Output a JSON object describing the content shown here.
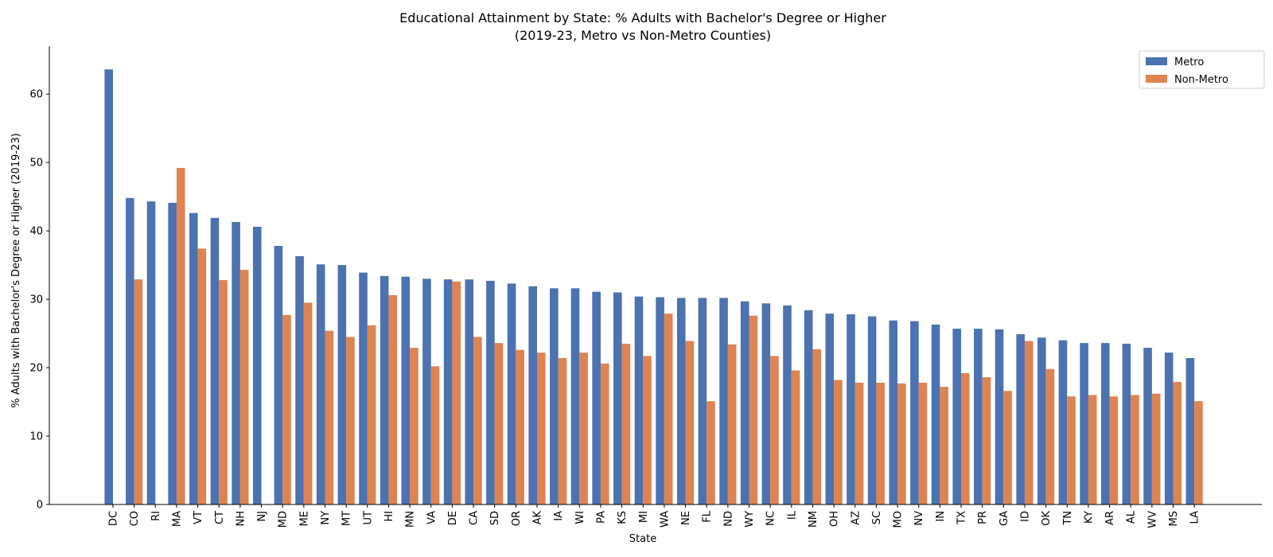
{
  "chart_data": {
    "type": "bar",
    "title": "Educational Attainment by State: % Adults with Bachelor's Degree or Higher",
    "subtitle": "(2019-23, Metro vs Non-Metro Counties)",
    "xlabel": "State",
    "ylabel": "% Adults with Bachelor's Degree or Higher (2019-23)",
    "ylim": [
      0,
      67
    ],
    "yticks": [
      0,
      10,
      20,
      30,
      40,
      50,
      60
    ],
    "grid": false,
    "legend_position": "top-right",
    "categories": [
      "DC",
      "CO",
      "RI",
      "MA",
      "VT",
      "CT",
      "NH",
      "NJ",
      "MD",
      "ME",
      "NY",
      "MT",
      "UT",
      "HI",
      "MN",
      "VA",
      "DE",
      "CA",
      "SD",
      "OR",
      "AK",
      "IA",
      "WI",
      "PA",
      "KS",
      "MI",
      "WA",
      "NE",
      "FL",
      "ND",
      "WY",
      "NC",
      "IL",
      "NM",
      "OH",
      "AZ",
      "SC",
      "MO",
      "NV",
      "IN",
      "TX",
      "PR",
      "GA",
      "ID",
      "OK",
      "TN",
      "KY",
      "AR",
      "AL",
      "WV",
      "MS",
      "LA"
    ],
    "series": [
      {
        "name": "Metro",
        "color": "#4c72b0",
        "values": [
          63.6,
          44.8,
          44.3,
          44.1,
          42.6,
          41.9,
          41.3,
          40.6,
          37.8,
          36.3,
          35.1,
          35.0,
          33.9,
          33.4,
          33.3,
          33.0,
          32.9,
          32.9,
          32.7,
          32.3,
          31.9,
          31.6,
          31.6,
          31.1,
          31.0,
          30.4,
          30.3,
          30.2,
          30.2,
          30.2,
          29.7,
          29.4,
          29.1,
          28.4,
          27.9,
          27.8,
          27.5,
          26.9,
          26.8,
          26.3,
          25.7,
          25.7,
          25.6,
          24.9,
          24.4,
          24.0,
          23.6,
          23.6,
          23.5,
          22.9,
          22.2,
          21.4
        ]
      },
      {
        "name": "Non-Metro",
        "color": "#dd8452",
        "values": [
          null,
          32.9,
          null,
          49.2,
          37.4,
          32.8,
          34.3,
          null,
          27.7,
          29.5,
          25.4,
          24.5,
          26.2,
          30.6,
          22.9,
          20.2,
          32.6,
          24.5,
          23.6,
          22.6,
          22.2,
          21.4,
          22.2,
          20.6,
          23.5,
          21.7,
          27.9,
          23.9,
          15.1,
          23.4,
          27.6,
          21.7,
          19.6,
          22.7,
          18.2,
          17.8,
          17.8,
          17.7,
          17.8,
          17.2,
          19.2,
          18.6,
          16.6,
          23.9,
          19.8,
          15.8,
          16.0,
          15.8,
          16.0,
          16.2,
          17.9,
          15.1
        ]
      }
    ]
  }
}
